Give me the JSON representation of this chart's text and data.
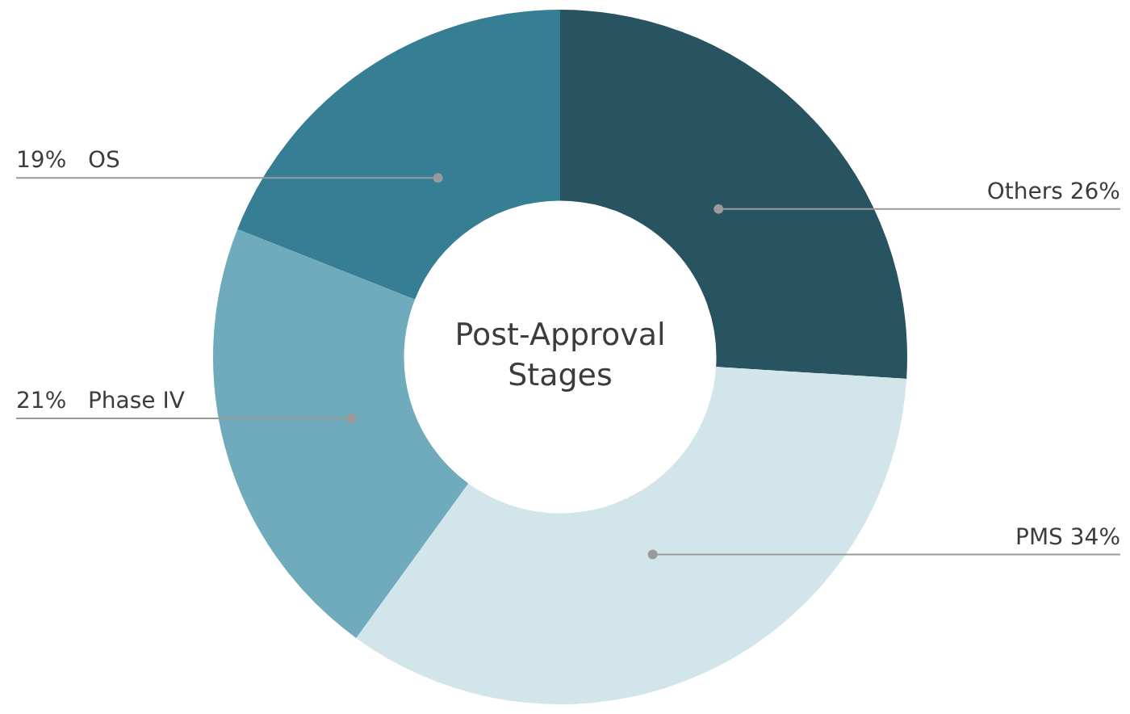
{
  "chart_data": {
    "type": "donut",
    "title": "Post-Approval Stages",
    "categories": [
      "Others",
      "PMS",
      "Phase IV",
      "OS"
    ],
    "values": [
      26,
      34,
      21,
      19
    ],
    "colors": [
      "#285461",
      "#d2e5ea",
      "#6fabbc",
      "#367e94"
    ],
    "value_labels": [
      "26%",
      "34%",
      "21%",
      "19%"
    ]
  }
}
